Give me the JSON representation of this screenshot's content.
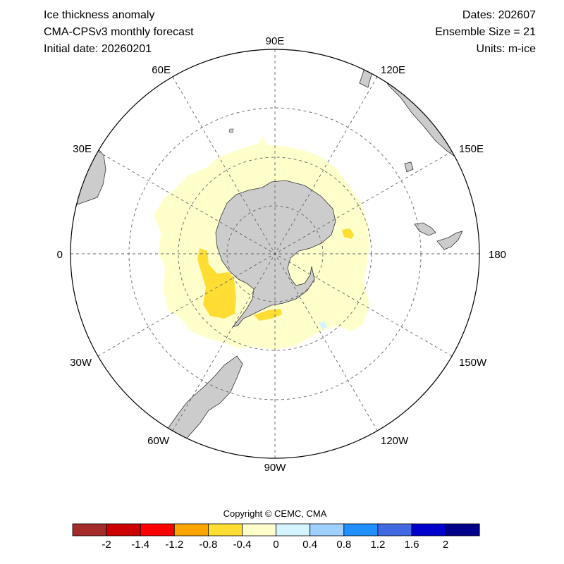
{
  "header": {
    "title": "Ice thickness anomaly",
    "model": "CMA-CPSv3 monthly forecast",
    "initial_date": "Initial date: 20260201",
    "dates": "Dates: 202607",
    "ensemble": "Ensemble Size = 21",
    "units": "Units: m-ice"
  },
  "map": {
    "projection": "south-polar-stereographic",
    "longitude_labels": {
      "lon_90E": "90E",
      "lon_120E": "120E",
      "lon_150E": "150E",
      "lon_180": "180",
      "lon_150W": "150W",
      "lon_120W": "120W",
      "lon_90W": "90W",
      "lon_60W": "60W",
      "lon_30W": "30W",
      "lon_0": "0",
      "lon_30E": "30E",
      "lon_60E": "60E"
    },
    "colors": {
      "land": "#cccccc",
      "ocean": "#ffffff",
      "grid": "#666666"
    }
  },
  "copyright": "Copyright © CEMC, CMA",
  "colorbar": {
    "colors": [
      "#a52a2a",
      "#cd0000",
      "#ff0000",
      "#ffa500",
      "#ffdd33",
      "#ffffcc",
      "#d4f4ff",
      "#a0d0ff",
      "#1e90ff",
      "#4169e1",
      "#0000cd",
      "#00008b"
    ],
    "tick_labels": [
      "-2",
      "-1.4",
      "-1.2",
      "-0.8",
      "-0.4",
      "0",
      "0.4",
      "0.8",
      "1.2",
      "1.6",
      "2"
    ],
    "tick_values": [
      -2,
      -1.4,
      -1.2,
      -0.8,
      -0.4,
      0,
      0.4,
      0.8,
      1.2,
      1.6,
      2
    ]
  }
}
